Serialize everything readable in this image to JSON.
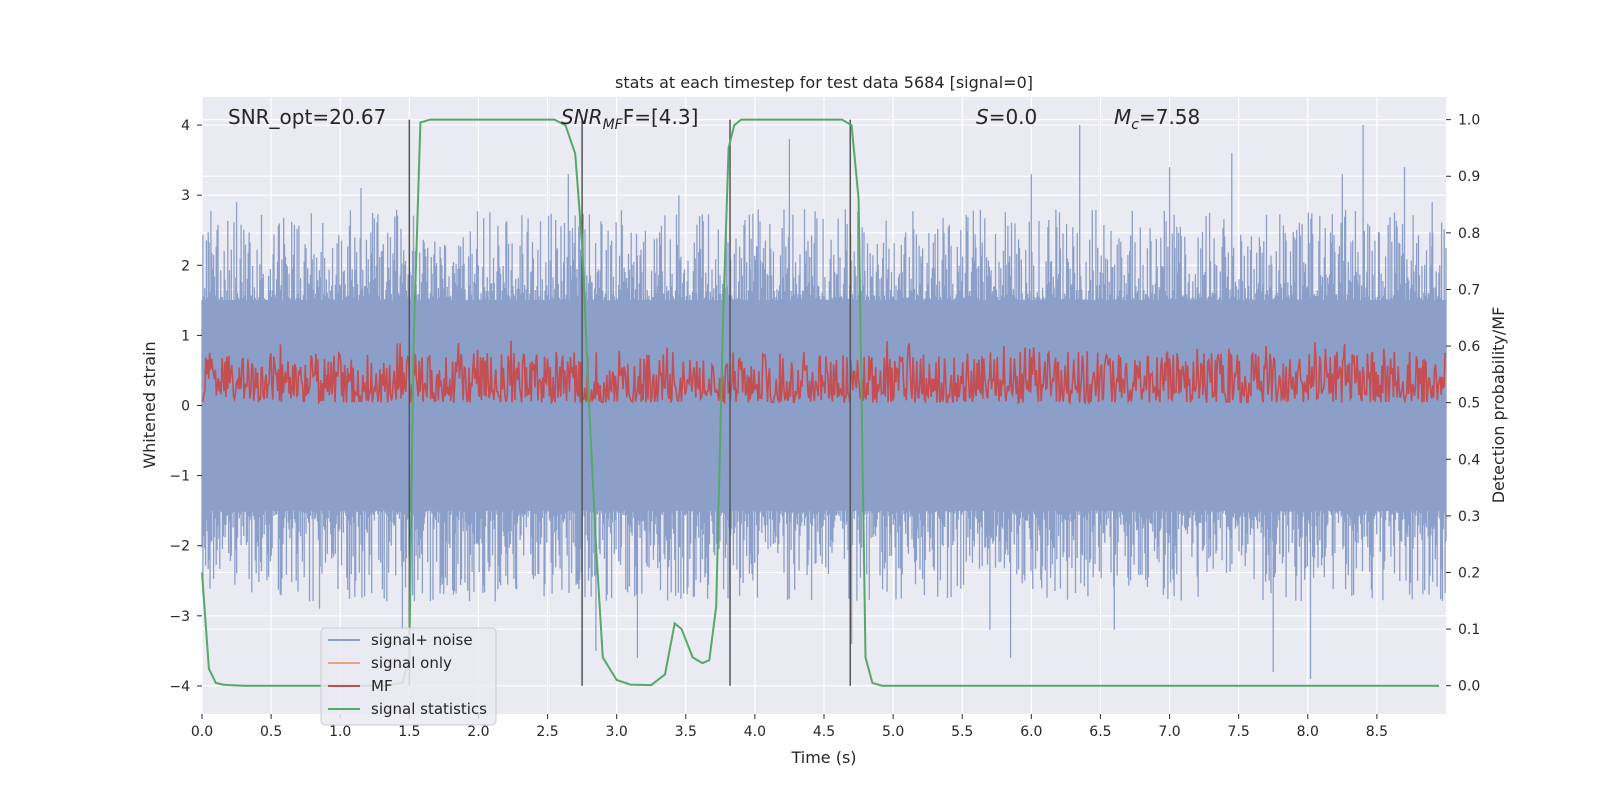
{
  "chart_data": {
    "type": "line",
    "title": "stats at each timestep for test data 5684 [signal=0]",
    "xlabel": "Time (s)",
    "ylabel_left": "Whitened strain",
    "ylabel_right": "Detection probability/MF",
    "xlim": [
      0.0,
      9.0
    ],
    "ylim_left": [
      -4.4,
      4.4
    ],
    "ylim_right": [
      -0.05,
      1.04
    ],
    "x_ticks": [
      0.0,
      0.5,
      1.0,
      1.5,
      2.0,
      2.5,
      3.0,
      3.5,
      4.0,
      4.5,
      5.0,
      5.5,
      6.0,
      6.5,
      7.0,
      7.5,
      8.0,
      8.5
    ],
    "x_tick_labels": [
      "0.0",
      "0.5",
      "1.0",
      "1.5",
      "2.0",
      "2.5",
      "3.0",
      "3.5",
      "4.0",
      "4.5",
      "5.0",
      "5.5",
      "6.0",
      "6.5",
      "7.0",
      "7.5",
      "8.0",
      "8.5"
    ],
    "y_left_ticks": [
      4,
      3,
      2,
      1,
      0,
      -1,
      -2,
      -3,
      -4
    ],
    "y_left_tick_labels": [
      "4",
      "3",
      "2",
      "1",
      "0",
      "−1",
      "−2",
      "−3",
      "−4"
    ],
    "y_right_ticks": [
      1.0,
      0.9,
      0.8,
      0.7,
      0.6,
      0.5,
      0.4,
      0.3,
      0.2,
      0.1,
      0.0
    ],
    "y_right_tick_labels": [
      "1.0",
      "0.9",
      "0.8",
      "0.7",
      "0.6",
      "0.5",
      "0.4",
      "0.3",
      "0.2",
      "0.1",
      "0.0"
    ],
    "grid": true,
    "legend_placement": "lower-left",
    "annotations": [
      {
        "key": "snr_opt",
        "text": "SNR_opt=20.67",
        "x": 0.2
      },
      {
        "key": "snr_mf",
        "text": "[4.3]",
        "x": 2.6
      },
      {
        "key": "s_val",
        "text": "=0.0",
        "x": 5.6
      },
      {
        "key": "mc",
        "text": "=7.58",
        "x": 6.6
      }
    ],
    "vertical_lines_x": [
      1.5,
      2.75,
      3.82,
      4.69
    ],
    "series": [
      {
        "name": "signal+ noise",
        "color": "#8c9fc9",
        "axis": "left",
        "description": "whitened strain noise, approx. |values| up to 2.5 typically with spikes to ~±4",
        "envelope": {
          "upper_typical": 2.0,
          "lower_typical": -2.0,
          "core": 1.5
        },
        "spikes": [
          {
            "x": 0.25,
            "y": 2.9
          },
          {
            "x": 0.85,
            "y": -2.9
          },
          {
            "x": 1.15,
            "y": 3.1
          },
          {
            "x": 1.45,
            "y": -3.2
          },
          {
            "x": 2.65,
            "y": 3.3
          },
          {
            "x": 2.85,
            "y": -3.5
          },
          {
            "x": 3.15,
            "y": -3.6
          },
          {
            "x": 3.45,
            "y": 3.0
          },
          {
            "x": 4.25,
            "y": 3.8
          },
          {
            "x": 4.7,
            "y": -3.4
          },
          {
            "x": 5.7,
            "y": -3.2
          },
          {
            "x": 5.85,
            "y": -3.6
          },
          {
            "x": 6.0,
            "y": 3.3
          },
          {
            "x": 6.35,
            "y": 4.0
          },
          {
            "x": 6.6,
            "y": -3.2
          },
          {
            "x": 7.0,
            "y": 3.4
          },
          {
            "x": 7.45,
            "y": 3.6
          },
          {
            "x": 7.75,
            "y": -3.8
          },
          {
            "x": 8.02,
            "y": -3.9
          },
          {
            "x": 8.25,
            "y": 3.3
          },
          {
            "x": 8.4,
            "y": 4.0
          },
          {
            "x": 8.7,
            "y": 3.4
          },
          {
            "x": 8.9,
            "y": 2.9
          }
        ]
      },
      {
        "name": "signal only",
        "color": "#e8a384",
        "axis": "left",
        "values_description": "zero (no signal injected)"
      },
      {
        "name": "MF",
        "color": "#c44e52",
        "axis": "right",
        "description": "matched filter output, approx. 0.5 to 0.6 on right axis",
        "range": [
          0.5,
          0.61
        ]
      },
      {
        "name": "signal statistics",
        "color": "#55a868",
        "axis": "right",
        "x": [
          0.0,
          0.05,
          0.1,
          0.15,
          0.2,
          0.3,
          0.5,
          0.8,
          1.0,
          1.3,
          1.45,
          1.5,
          1.53,
          1.58,
          1.65,
          1.8,
          2.0,
          2.3,
          2.55,
          2.63,
          2.7,
          2.75,
          2.8,
          2.85,
          2.9,
          3.0,
          3.1,
          3.25,
          3.35,
          3.42,
          3.47,
          3.55,
          3.62,
          3.67,
          3.72,
          3.77,
          3.81,
          3.85,
          3.9,
          4.0,
          4.2,
          4.5,
          4.63,
          4.7,
          4.75,
          4.8,
          4.85,
          4.92,
          5.2,
          6.0,
          7.0,
          8.0,
          8.95
        ],
        "y": [
          0.2,
          0.03,
          0.005,
          0.002,
          0.001,
          0.0,
          0.0,
          0.0,
          0.0,
          0.0,
          0.005,
          0.05,
          0.6,
          0.995,
          1.0,
          1.0,
          1.0,
          1.0,
          1.0,
          0.99,
          0.94,
          0.78,
          0.5,
          0.25,
          0.05,
          0.01,
          0.002,
          0.001,
          0.02,
          0.11,
          0.1,
          0.05,
          0.04,
          0.045,
          0.14,
          0.65,
          0.95,
          0.99,
          1.0,
          1.0,
          1.0,
          1.0,
          1.0,
          0.99,
          0.86,
          0.05,
          0.005,
          0.0,
          0.0,
          0.0,
          0.0,
          0.0,
          0.0
        ]
      }
    ]
  },
  "legend": [
    {
      "label": "signal+ noise",
      "color": "#8c9fc9"
    },
    {
      "label": "signal only",
      "color": "#e8a384"
    },
    {
      "label": "MF",
      "color": "#c44e52"
    },
    {
      "label": "signal statistics",
      "color": "#55a868"
    }
  ],
  "annotation_text": {
    "snr_opt": "SNR_opt=20.67",
    "snr_mf_base": "SNR",
    "snr_mf_sub": "MF",
    "snr_mf_tail": "F=[4.3]",
    "s_label": "S",
    "s_tail": "=0.0",
    "mc_base": "M",
    "mc_sub": "c",
    "mc_tail": "=7.58"
  }
}
